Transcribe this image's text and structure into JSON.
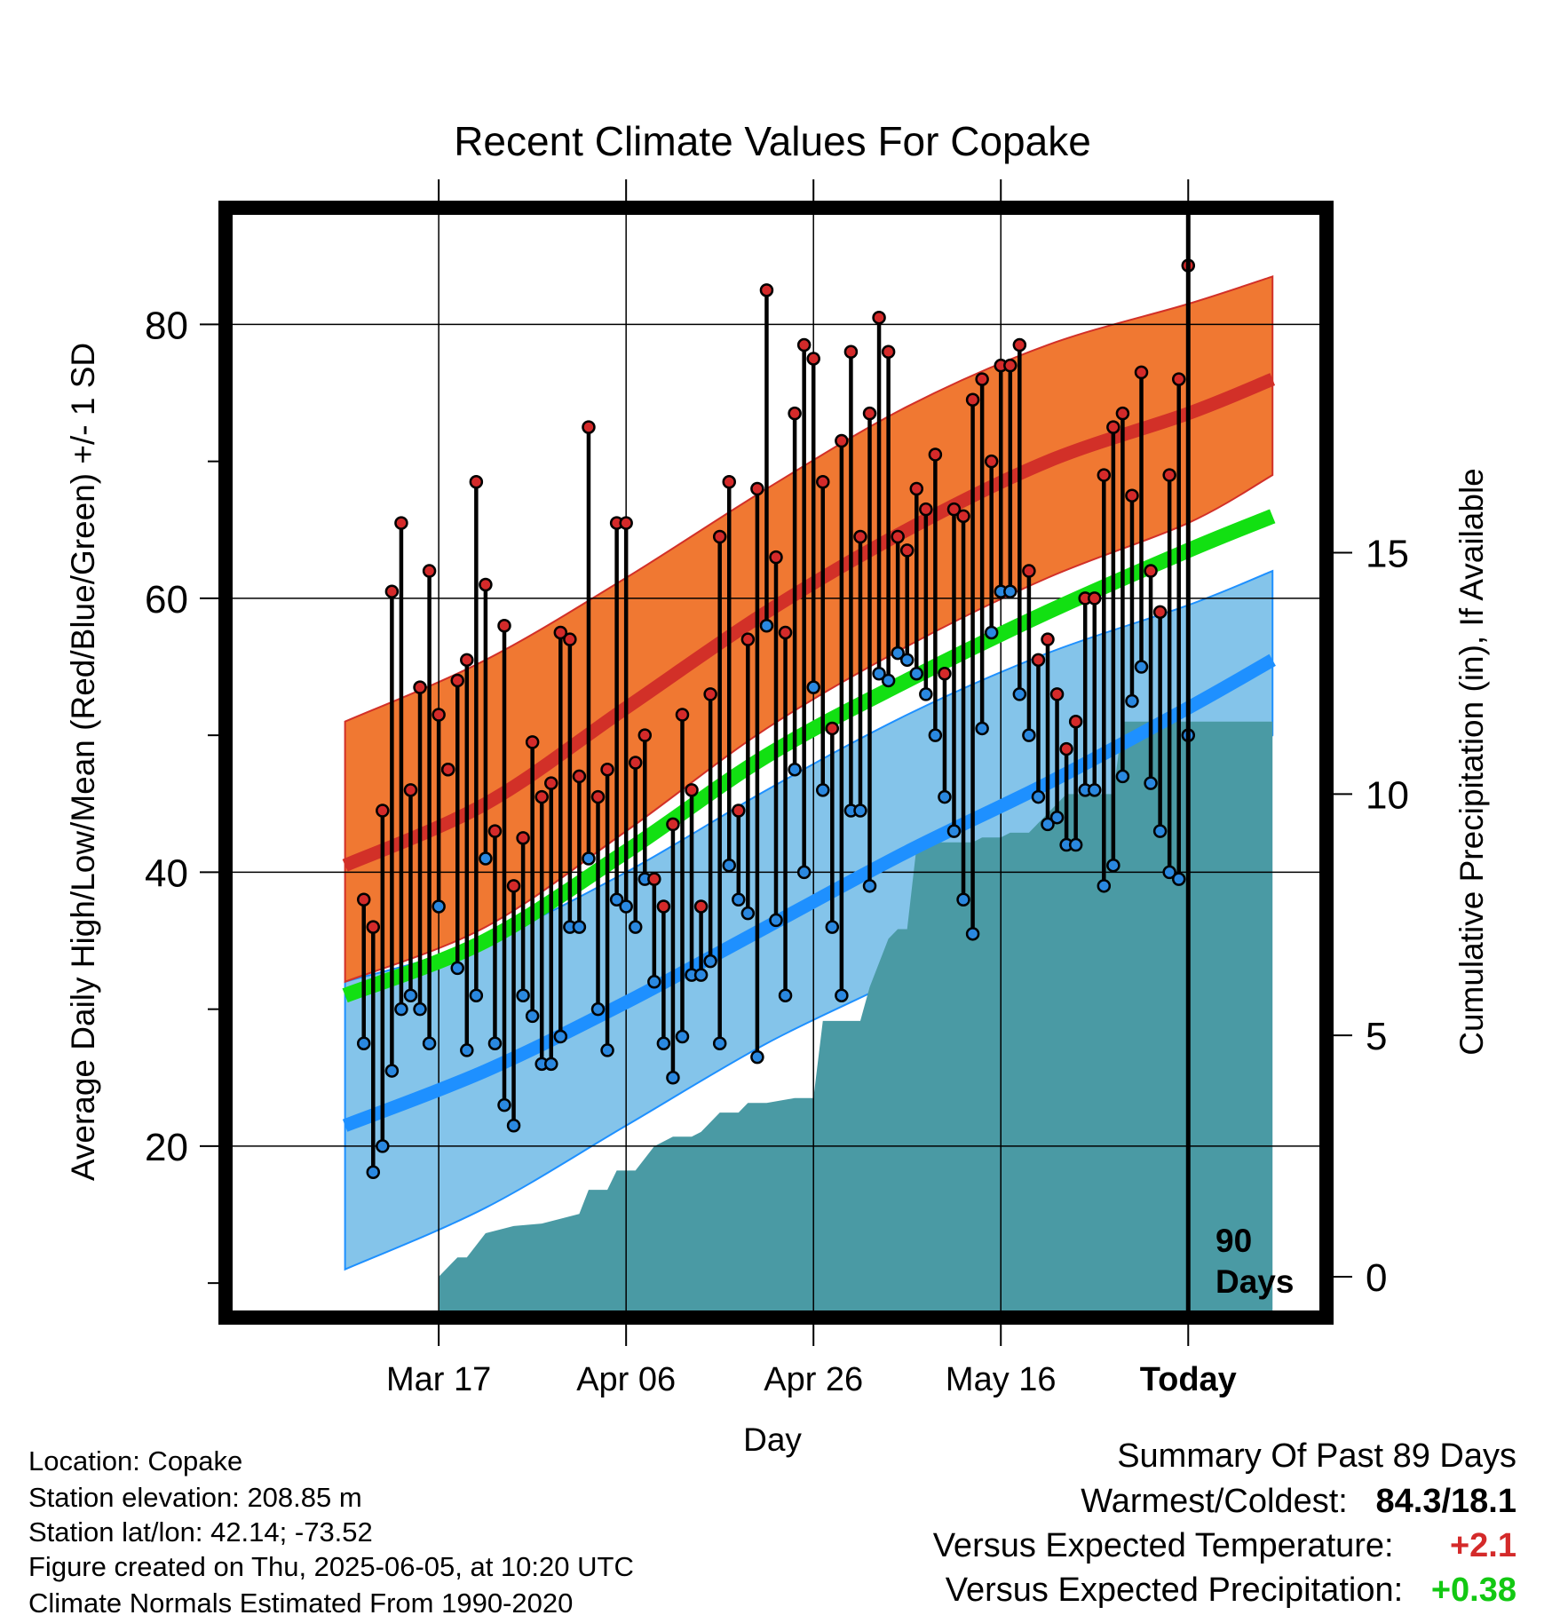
{
  "chart_data": {
    "type": "line",
    "title": "Recent Climate Values For Copake",
    "xlabel": "Day",
    "ylabel": "Average Daily High/Low/Mean (Red/Blue/Green) +/- 1 SD",
    "y2label": "Cumulative Precipitation (in), If Available",
    "x_range_days": [
      -102,
      14
    ],
    "ylim": [
      8,
      88
    ],
    "y2lim": [
      -0.7,
      22
    ],
    "x_ticks": [
      {
        "day": -80,
        "label": "Mar 17"
      },
      {
        "day": -60,
        "label": "Apr 06"
      },
      {
        "day": -40,
        "label": "Apr 26"
      },
      {
        "day": -20,
        "label": "May 16"
      },
      {
        "day": 0,
        "label": "Today"
      }
    ],
    "y_ticks": [
      20,
      40,
      60,
      80
    ],
    "y2_ticks": [
      0,
      5,
      10,
      15
    ],
    "today_marker": {
      "day": 0,
      "label_line1": "90",
      "label_line2": "Days"
    },
    "normals": {
      "days": [
        -90,
        -75,
        -60,
        -45,
        -30,
        -15,
        0,
        9
      ],
      "high_mean": [
        40.5,
        45,
        52,
        59,
        65,
        70,
        73.5,
        76
      ],
      "high_sd_upper": [
        51,
        55.5,
        61.5,
        68,
        74,
        78.5,
        81.5,
        83.5
      ],
      "high_sd_lower": [
        32,
        36,
        43,
        50.5,
        56.5,
        61.5,
        65.5,
        69
      ],
      "avg_mean": [
        31,
        35,
        41.5,
        48.5,
        54,
        59,
        63.5,
        66
      ],
      "low_mean": [
        21.5,
        25.5,
        30.5,
        36,
        41.5,
        46.5,
        52,
        55.5
      ],
      "low_sd_upper": [
        32,
        35,
        40,
        46,
        51.5,
        56,
        59.5,
        62
      ],
      "low_sd_lower": [
        11,
        15.5,
        21.5,
        27.5,
        32.5,
        38,
        44,
        50
      ]
    },
    "daily_highs": [
      38,
      36,
      44.5,
      60.5,
      65.5,
      46,
      53.5,
      62,
      51.5,
      47.5,
      54,
      55.5,
      68.5,
      61,
      43,
      58,
      39,
      42.5,
      49.5,
      45.5,
      46.5,
      57.5,
      57,
      47,
      72.5,
      45.5,
      47.5,
      65.5,
      65.5,
      48,
      50,
      39.5,
      37.5,
      43.5,
      51.5,
      46,
      37.5,
      53,
      64.5,
      68.5,
      44.5,
      57,
      68,
      82.5,
      63,
      57.5,
      73.5,
      78.5,
      77.5,
      68.5,
      50.5,
      71.5,
      78,
      64.5,
      73.5,
      80.5,
      78,
      64.5,
      63.5,
      68,
      66.5,
      70.5,
      54.5,
      66.5,
      66,
      74.5,
      76,
      70,
      77,
      77,
      78.5,
      62,
      55.5,
      57,
      53,
      49,
      51,
      60,
      60,
      69,
      72.5,
      73.5,
      67.5,
      76.5,
      62,
      59,
      69,
      76,
      84.3
    ],
    "daily_lows": [
      27.5,
      18.1,
      20,
      25.5,
      30,
      31,
      30,
      27.5,
      37.5,
      47.5,
      33,
      27,
      31,
      41,
      27.5,
      23,
      21.5,
      31,
      29.5,
      26,
      26,
      28,
      36,
      36,
      41,
      30,
      27,
      38,
      37.5,
      36,
      39.5,
      32,
      27.5,
      25,
      28,
      32.5,
      32.5,
      33.5,
      27.5,
      40.5,
      38,
      37,
      26.5,
      58,
      36.5,
      31,
      47.5,
      40,
      53.5,
      46,
      36,
      31,
      44.5,
      44.5,
      39,
      54.5,
      54,
      56,
      55.5,
      54.5,
      53,
      50,
      45.5,
      43,
      38,
      35.5,
      50.5,
      57.5,
      60.5,
      60.5,
      53,
      50,
      45.5,
      43.5,
      44,
      42,
      42,
      46,
      46,
      39,
      40.5,
      47,
      52.5,
      55,
      46.5,
      43,
      40,
      39.5,
      50
    ],
    "precip_cumulative": {
      "days": [
        -80,
        -78,
        -77,
        -75,
        -72,
        -69,
        -65,
        -64,
        -62,
        -61,
        -59,
        -57,
        -55,
        -53,
        -52,
        -50,
        -48,
        -47,
        -45,
        -42,
        -40,
        -39,
        -37,
        -35,
        -34,
        -32,
        -31,
        -30,
        -29,
        -28,
        -27,
        -26,
        -25,
        -24,
        -23,
        -22,
        -21,
        -20,
        -19,
        -18,
        -17,
        -16,
        -15,
        -14,
        -13,
        -12,
        -11,
        -9,
        -8,
        -7,
        -6,
        -5,
        -4,
        -3,
        -2,
        -1,
        0,
        9
      ],
      "values": [
        0,
        0.4,
        0.4,
        0.9,
        1.05,
        1.1,
        1.3,
        1.8,
        1.8,
        2.2,
        2.2,
        2.7,
        2.9,
        2.9,
        3.0,
        3.4,
        3.4,
        3.6,
        3.6,
        3.7,
        3.7,
        5.3,
        5.3,
        5.3,
        6.0,
        7.0,
        7.2,
        7.2,
        8.9,
        9.0,
        9.0,
        9.0,
        9.0,
        9.0,
        9.0,
        9.1,
        9.1,
        9.1,
        9.2,
        9.2,
        9.2,
        9.4,
        9.6,
        9.8,
        10.0,
        10.0,
        10.0,
        10.0,
        10.0,
        11.5,
        11.5,
        11.5,
        11.5,
        11.5,
        11.5,
        11.5,
        11.5,
        11.5
      ]
    },
    "colors": {
      "high_band": "#f07832",
      "high_mean": "#d23028",
      "avg_mean": "#12e012",
      "low_band": "#84c4ea",
      "low_mean": "#1e90ff",
      "precip": "#4a9aa4",
      "high_dot": "#d42a2a",
      "low_dot": "#2a88e0",
      "positive_temp": "#d42a2a",
      "positive_precip": "#12c812"
    }
  },
  "footer_left": {
    "location": "Location: Copake",
    "elevation": "Station elevation: 208.85 m",
    "latlon": "Station lat/lon: 42.14; -73.52",
    "created": "Figure created on Thu, 2025-06-05, at 10:20 UTC",
    "normals_period": "Climate Normals Estimated From 1990-2020"
  },
  "summary": {
    "heading": "Summary Of Past 89 Days",
    "warm_cold_label": "Warmest/Coldest:",
    "warm_cold_value": "84.3/18.1",
    "temp_label": "Versus Expected Temperature:",
    "temp_value": "+2.1",
    "precip_label": "Versus Expected Precipitation:",
    "precip_value": "+0.38"
  }
}
